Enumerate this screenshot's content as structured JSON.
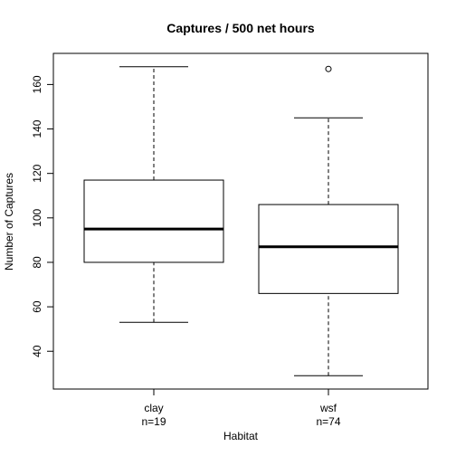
{
  "chart_data": {
    "type": "boxplot",
    "title": "Captures / 500 net hours",
    "xlabel": "Habitat",
    "ylabel": "Number of Captures",
    "ylim": [
      23,
      174
    ],
    "yticks": [
      40,
      60,
      80,
      100,
      120,
      140,
      160
    ],
    "grid": false,
    "legend": "none",
    "groups": [
      {
        "category": "clay",
        "count_label": "n=19",
        "min": 53,
        "q1": 80,
        "median": 95,
        "q3": 117,
        "max": 168,
        "outliers": []
      },
      {
        "category": "wsf",
        "count_label": "n=74",
        "min": 29,
        "q1": 66,
        "median": 87,
        "q3": 106,
        "max": 145,
        "outliers": [
          167
        ]
      }
    ]
  }
}
